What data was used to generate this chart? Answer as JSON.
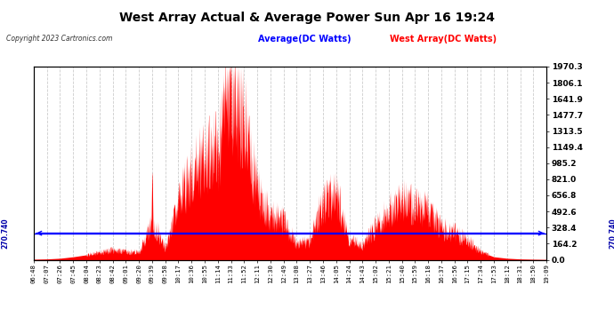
{
  "title": "West Array Actual & Average Power Sun Apr 16 19:24",
  "copyright": "Copyright 2023 Cartronics.com",
  "legend_average": "Average(DC Watts)",
  "legend_west": "West Array(DC Watts)",
  "average_value": 270.74,
  "ymax": 1970.3,
  "ymin": 0.0,
  "yticks": [
    0.0,
    164.2,
    328.4,
    492.6,
    656.8,
    821.0,
    985.2,
    1149.4,
    1313.5,
    1477.7,
    1641.9,
    1806.1,
    1970.3
  ],
  "xtick_labels": [
    "06:48",
    "07:07",
    "07:26",
    "07:45",
    "08:04",
    "08:23",
    "08:42",
    "09:01",
    "09:20",
    "09:39",
    "09:58",
    "10:17",
    "10:36",
    "10:55",
    "11:14",
    "11:33",
    "11:52",
    "12:11",
    "12:30",
    "12:49",
    "13:08",
    "13:27",
    "13:46",
    "14:05",
    "14:24",
    "14:43",
    "15:02",
    "15:21",
    "15:40",
    "15:59",
    "16:18",
    "16:37",
    "16:56",
    "17:15",
    "17:34",
    "17:53",
    "18:12",
    "18:31",
    "18:50",
    "19:09"
  ],
  "bg_color": "#ffffff",
  "plot_bg_color": "#ffffff",
  "grid_color": "#cccccc",
  "title_color": "#000000",
  "avg_line_color": "#0000ff",
  "west_fill_color": "#ff0000",
  "right_label_color": "#000000",
  "avg_label_color": "#0000ff",
  "west_label_color": "#ff0000",
  "side_annotation_color": "#0000aa"
}
